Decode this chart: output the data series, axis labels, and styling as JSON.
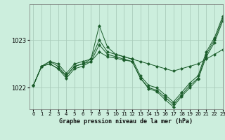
{
  "title": "Graphe pression niveau de la mer (hPa)",
  "background_color": "#cceedd",
  "grid_color": "#aaccbb",
  "line_color": "#1a5c2a",
  "marker_color": "#1a5c2a",
  "xlim": [
    -0.5,
    23
  ],
  "ylim": [
    1021.55,
    1023.75
  ],
  "yticks": [
    1022,
    1023
  ],
  "xticks": [
    0,
    1,
    2,
    3,
    4,
    5,
    6,
    7,
    8,
    9,
    10,
    11,
    12,
    13,
    14,
    15,
    16,
    17,
    18,
    19,
    20,
    21,
    22,
    23
  ],
  "series": [
    [
      1022.05,
      1022.45,
      1022.55,
      1022.5,
      1022.3,
      1022.5,
      1022.55,
      1022.6,
      1023.0,
      1022.75,
      1022.7,
      1022.65,
      1022.6,
      1022.55,
      1022.5,
      1022.45,
      1022.4,
      1022.35,
      1022.4,
      1022.45,
      1022.5,
      1022.6,
      1022.7,
      1022.8
    ],
    [
      1022.05,
      1022.45,
      1022.55,
      1022.45,
      1022.25,
      1022.45,
      1022.5,
      1022.6,
      1023.3,
      1022.85,
      1022.7,
      1022.65,
      1022.6,
      1022.25,
      1022.05,
      1022.0,
      1021.85,
      1021.7,
      1021.9,
      1022.1,
      1022.25,
      1022.75,
      1023.05,
      1023.5
    ],
    [
      1022.05,
      1022.45,
      1022.5,
      1022.4,
      1022.25,
      1022.45,
      1022.5,
      1022.55,
      1022.9,
      1022.7,
      1022.65,
      1022.6,
      1022.55,
      1022.2,
      1022.0,
      1021.95,
      1021.8,
      1021.65,
      1021.85,
      1022.05,
      1022.2,
      1022.7,
      1023.0,
      1023.45
    ],
    [
      1022.05,
      1022.45,
      1022.5,
      1022.4,
      1022.2,
      1022.4,
      1022.45,
      1022.55,
      1022.75,
      1022.65,
      1022.62,
      1022.58,
      1022.55,
      1022.2,
      1021.98,
      1021.92,
      1021.75,
      1021.6,
      1021.82,
      1022.0,
      1022.18,
      1022.65,
      1022.95,
      1023.4
    ]
  ]
}
